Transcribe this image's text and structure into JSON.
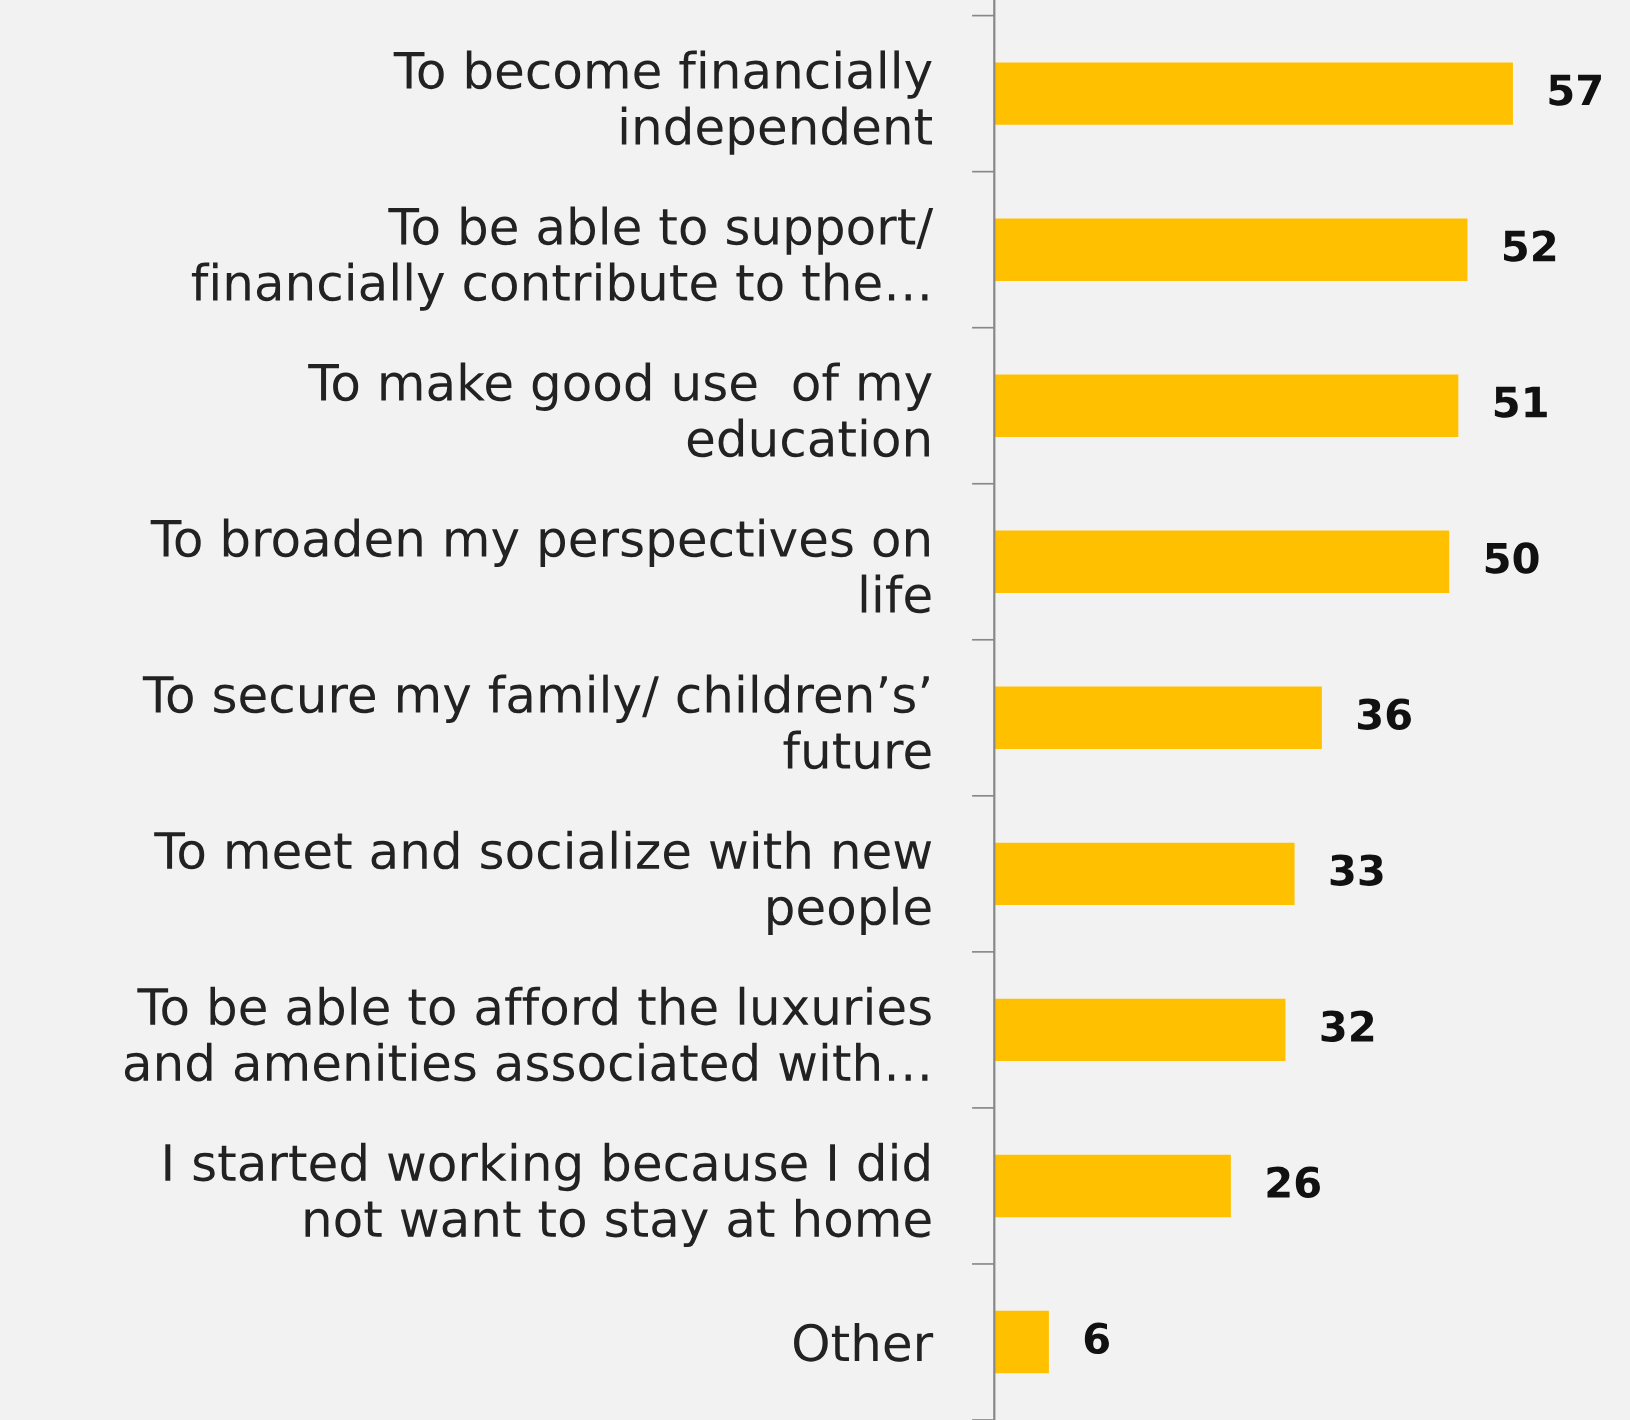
{
  "chart_data": {
    "type": "bar",
    "orientation": "horizontal",
    "categories": [
      "To become financially\nindependent",
      "To be able to support/\nfinancially contribute to the…",
      "To make good use  of my\neducation",
      "To broaden my perspectives on\nlife",
      "To secure my family/ children’s’\nfuture",
      "To meet and socialize with new\npeople",
      "To be able to afford the luxuries\nand amenities associated with…",
      "I started working because I did\nnot want to stay at home",
      "Other"
    ],
    "values": [
      57,
      52,
      51,
      50,
      36,
      33,
      32,
      26,
      6
    ],
    "color": "#ffc000",
    "data_labels": true,
    "grid": false,
    "legend": false,
    "tick_labels": "y"
  }
}
